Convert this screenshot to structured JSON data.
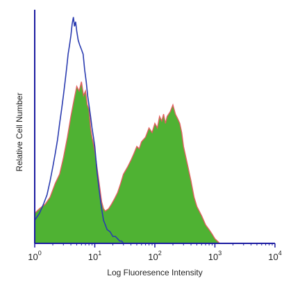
{
  "chart_data": {
    "type": "area",
    "xlabel": "Log Fluoresence Intensity",
    "ylabel": "Relative Cell Number",
    "xscale": "log",
    "xlim": [
      1,
      10000
    ],
    "ylim": [
      0,
      1
    ],
    "x_ticks": [
      {
        "value": 1,
        "base": "10",
        "exp": "0"
      },
      {
        "value": 10,
        "base": "10",
        "exp": "1"
      },
      {
        "value": 100,
        "base": "10",
        "exp": "2"
      },
      {
        "value": 1000,
        "base": "10",
        "exp": "3"
      },
      {
        "value": 10000,
        "base": "10",
        "exp": "4"
      }
    ],
    "grid": false,
    "legend": "none",
    "series": [
      {
        "style": "filled",
        "fill_color": "#4fb233",
        "edge_color": "#e26060",
        "x": [
          1.0,
          1.2,
          1.5,
          1.8,
          2.2,
          2.6,
          3.0,
          3.5,
          4.0,
          4.5,
          5.0,
          5.5,
          6.0,
          6.5,
          7.0,
          7.5,
          8.0,
          8.5,
          9.0,
          9.5,
          10.0,
          11,
          12,
          13,
          14,
          15,
          17,
          19,
          21,
          24,
          27,
          30,
          35,
          40,
          45,
          50,
          55,
          60,
          70,
          80,
          90,
          100,
          110,
          120,
          130,
          140,
          150,
          160,
          180,
          200,
          220,
          240,
          260,
          280,
          300,
          350,
          400,
          450,
          500,
          600,
          700,
          800,
          900,
          1000,
          1100,
          1200
        ],
        "y": [
          0.13,
          0.15,
          0.17,
          0.2,
          0.26,
          0.3,
          0.37,
          0.46,
          0.55,
          0.62,
          0.68,
          0.66,
          0.7,
          0.64,
          0.66,
          0.6,
          0.58,
          0.5,
          0.46,
          0.43,
          0.4,
          0.32,
          0.25,
          0.18,
          0.15,
          0.14,
          0.15,
          0.17,
          0.19,
          0.22,
          0.26,
          0.3,
          0.33,
          0.36,
          0.39,
          0.42,
          0.41,
          0.44,
          0.46,
          0.5,
          0.48,
          0.52,
          0.5,
          0.55,
          0.53,
          0.56,
          0.52,
          0.55,
          0.57,
          0.6,
          0.56,
          0.54,
          0.52,
          0.48,
          0.42,
          0.34,
          0.27,
          0.2,
          0.16,
          0.12,
          0.08,
          0.06,
          0.04,
          0.02,
          0.01,
          0.0
        ]
      },
      {
        "style": "line",
        "line_color": "#2a3bb0",
        "x": [
          1.0,
          1.2,
          1.4,
          1.6,
          1.8,
          2.0,
          2.2,
          2.4,
          2.6,
          2.8,
          3.0,
          3.2,
          3.4,
          3.6,
          3.8,
          4.0,
          4.2,
          4.4,
          4.6,
          4.8,
          5.0,
          5.3,
          5.6,
          6.0,
          6.4,
          6.8,
          7.2,
          7.6,
          8.0,
          8.5,
          9.0,
          9.5,
          10.0,
          10.5,
          11,
          12,
          13,
          14,
          15,
          16,
          18,
          20,
          22,
          24,
          26,
          28,
          30
        ],
        "y": [
          0.1,
          0.13,
          0.17,
          0.21,
          0.27,
          0.33,
          0.39,
          0.45,
          0.52,
          0.58,
          0.64,
          0.7,
          0.76,
          0.82,
          0.86,
          0.9,
          0.95,
          0.98,
          0.94,
          0.96,
          0.92,
          0.88,
          0.86,
          0.84,
          0.82,
          0.75,
          0.7,
          0.64,
          0.6,
          0.55,
          0.5,
          0.46,
          0.42,
          0.36,
          0.3,
          0.22,
          0.15,
          0.1,
          0.08,
          0.06,
          0.05,
          0.03,
          0.03,
          0.02,
          0.01,
          0.01,
          0.0
        ]
      }
    ]
  }
}
